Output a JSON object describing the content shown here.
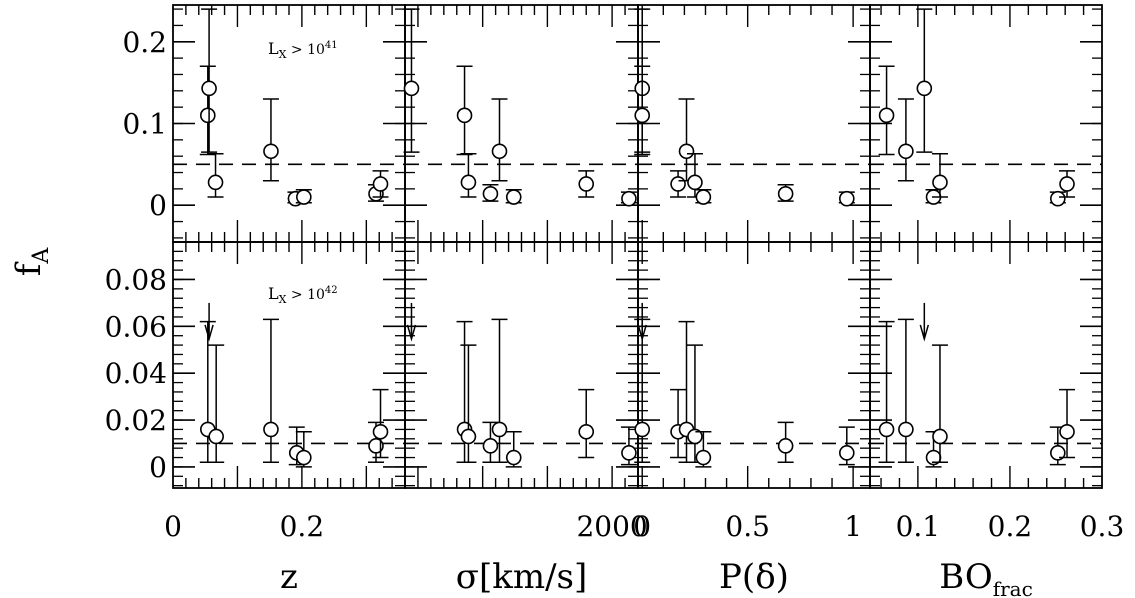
{
  "figure": {
    "ylabel_main": "f",
    "ylabel_sub": "A"
  },
  "annotations": {
    "top_prefix": "L",
    "top_sub": "X",
    "top_rest": " > 10",
    "top_exp": "41",
    "bottom_prefix": "L",
    "bottom_sub": "X",
    "bottom_rest": " > 10",
    "bottom_exp": "42"
  },
  "colors": {
    "ink": "#000000",
    "background": "#ffffff"
  },
  "chart_data": [
    {
      "type": "scatter",
      "panel": "top-z",
      "xlabel": "z",
      "xlim": [
        0,
        0.36
      ],
      "ylim": [
        -0.045,
        0.245
      ],
      "xticks": [
        0,
        0.2
      ],
      "xticklabels": [
        "0",
        "0.2"
      ],
      "yticks": [
        0,
        0.1,
        0.2
      ],
      "yticklabels": [
        "0",
        "0.1",
        "0.2"
      ],
      "reference_y": 0.05,
      "points": [
        {
          "x": 0.054,
          "y": 0.11,
          "lo": 0.062,
          "hi": 0.17
        },
        {
          "x": 0.056,
          "y": 0.143,
          "lo": 0.065,
          "hi": 0.24
        },
        {
          "x": 0.066,
          "y": 0.028,
          "lo": 0.01,
          "hi": 0.063
        },
        {
          "x": 0.152,
          "y": 0.066,
          "lo": 0.03,
          "hi": 0.13
        },
        {
          "x": 0.19,
          "y": 0.008,
          "lo": 0.003,
          "hi": 0.016
        },
        {
          "x": 0.203,
          "y": 0.01,
          "lo": 0.003,
          "hi": 0.019
        },
        {
          "x": 0.315,
          "y": 0.014,
          "lo": 0.005,
          "hi": 0.025
        },
        {
          "x": 0.322,
          "y": 0.026,
          "lo": 0.01,
          "hi": 0.042
        }
      ],
      "upper_limits": []
    },
    {
      "type": "scatter",
      "panel": "top-sigma",
      "xlabel": "σ[km/s]",
      "xlim": [
        400,
        2200
      ],
      "ylim": [
        -0.045,
        0.245
      ],
      "xticks": [
        2000
      ],
      "xticklabels": [
        "2000"
      ],
      "yticks": [
        0,
        0.1,
        0.2
      ],
      "yticklabels": [],
      "reference_y": 0.05,
      "points": [
        {
          "x": 450,
          "y": 0.143,
          "lo": 0.065,
          "hi": 0.24
        },
        {
          "x": 860,
          "y": 0.11,
          "lo": 0.062,
          "hi": 0.17
        },
        {
          "x": 890,
          "y": 0.028,
          "lo": 0.01,
          "hi": 0.063
        },
        {
          "x": 1060,
          "y": 0.014,
          "lo": 0.005,
          "hi": 0.025
        },
        {
          "x": 1130,
          "y": 0.066,
          "lo": 0.03,
          "hi": 0.13
        },
        {
          "x": 1240,
          "y": 0.01,
          "lo": 0.003,
          "hi": 0.019
        },
        {
          "x": 1800,
          "y": 0.026,
          "lo": 0.01,
          "hi": 0.042
        },
        {
          "x": 2130,
          "y": 0.008,
          "lo": 0.003,
          "hi": 0.016
        }
      ],
      "upper_limits": []
    },
    {
      "type": "scatter",
      "panel": "top-P",
      "xlabel": "P(δ)",
      "xlim": [
        -0.02,
        1.08
      ],
      "ylim": [
        -0.045,
        0.245
      ],
      "xticks": [
        0,
        0.5,
        1
      ],
      "xticklabels": [
        "0",
        "0.5",
        "1"
      ],
      "yticks": [
        0,
        0.1,
        0.2
      ],
      "yticklabels": [],
      "reference_y": 0.05,
      "points": [
        {
          "x": 0.0,
          "y": 0.143,
          "lo": 0.065,
          "hi": 0.24
        },
        {
          "x": 0.0,
          "y": 0.11,
          "lo": 0.062,
          "hi": 0.17
        },
        {
          "x": 0.17,
          "y": 0.026,
          "lo": 0.01,
          "hi": 0.042
        },
        {
          "x": 0.21,
          "y": 0.066,
          "lo": 0.03,
          "hi": 0.13
        },
        {
          "x": 0.25,
          "y": 0.028,
          "lo": 0.01,
          "hi": 0.063
        },
        {
          "x": 0.29,
          "y": 0.01,
          "lo": 0.003,
          "hi": 0.019
        },
        {
          "x": 0.68,
          "y": 0.014,
          "lo": 0.005,
          "hi": 0.025
        },
        {
          "x": 0.97,
          "y": 0.008,
          "lo": 0.003,
          "hi": 0.016
        }
      ],
      "upper_limits": []
    },
    {
      "type": "scatter",
      "panel": "top-BO",
      "xlabel": "BO",
      "xlabel_sub": "frac",
      "xlim": [
        0.048,
        0.3
      ],
      "ylim": [
        -0.045,
        0.245
      ],
      "xticks": [
        0.1,
        0.2,
        0.3
      ],
      "xticklabels": [
        "0.1",
        "0.2",
        "0.3"
      ],
      "yticks": [
        0,
        0.1,
        0.2
      ],
      "yticklabels": [],
      "reference_y": 0.05,
      "points": [
        {
          "x": 0.066,
          "y": 0.11,
          "lo": 0.062,
          "hi": 0.17
        },
        {
          "x": 0.087,
          "y": 0.066,
          "lo": 0.03,
          "hi": 0.13
        },
        {
          "x": 0.107,
          "y": 0.143,
          "lo": 0.065,
          "hi": 0.24
        },
        {
          "x": 0.117,
          "y": 0.01,
          "lo": 0.003,
          "hi": 0.019
        },
        {
          "x": 0.124,
          "y": 0.028,
          "lo": 0.01,
          "hi": 0.063
        },
        {
          "x": 0.252,
          "y": 0.008,
          "lo": 0.003,
          "hi": 0.016
        },
        {
          "x": 0.262,
          "y": 0.026,
          "lo": 0.01,
          "hi": 0.042
        }
      ],
      "upper_limits": []
    },
    {
      "type": "scatter",
      "panel": "bottom-z",
      "xlabel": "z",
      "xlim": [
        0,
        0.36
      ],
      "ylim": [
        -0.009,
        0.096
      ],
      "xticks": [
        0,
        0.2
      ],
      "xticklabels": [
        "0",
        "0.2"
      ],
      "yticks": [
        0,
        0.02,
        0.04,
        0.06,
        0.08
      ],
      "yticklabels": [
        "0",
        "0.02",
        "0.04",
        "0.06",
        "0.08"
      ],
      "reference_y": 0.01,
      "points": [
        {
          "x": 0.054,
          "y": 0.016,
          "lo": 0.002,
          "hi": 0.062
        },
        {
          "x": 0.067,
          "y": 0.013,
          "lo": 0.002,
          "hi": 0.052
        },
        {
          "x": 0.152,
          "y": 0.016,
          "lo": 0.002,
          "hi": 0.063
        },
        {
          "x": 0.192,
          "y": 0.006,
          "lo": 0.001,
          "hi": 0.017
        },
        {
          "x": 0.203,
          "y": 0.004,
          "lo": 0.0,
          "hi": 0.015
        },
        {
          "x": 0.315,
          "y": 0.009,
          "lo": 0.002,
          "hi": 0.019
        },
        {
          "x": 0.322,
          "y": 0.015,
          "lo": 0.004,
          "hi": 0.033
        }
      ],
      "upper_limits": [
        {
          "x": 0.056,
          "y": 0.07
        }
      ]
    },
    {
      "type": "scatter",
      "panel": "bottom-sigma",
      "xlabel": "σ[km/s]",
      "xlim": [
        400,
        2200
      ],
      "ylim": [
        -0.009,
        0.096
      ],
      "xticks": [
        2000
      ],
      "xticklabels": [
        "2000"
      ],
      "yticks": [
        0,
        0.02,
        0.04,
        0.06,
        0.08
      ],
      "yticklabels": [],
      "reference_y": 0.01,
      "points": [
        {
          "x": 860,
          "y": 0.016,
          "lo": 0.002,
          "hi": 0.062
        },
        {
          "x": 890,
          "y": 0.013,
          "lo": 0.002,
          "hi": 0.052
        },
        {
          "x": 1060,
          "y": 0.009,
          "lo": 0.002,
          "hi": 0.019
        },
        {
          "x": 1130,
          "y": 0.016,
          "lo": 0.002,
          "hi": 0.063
        },
        {
          "x": 1240,
          "y": 0.004,
          "lo": 0.0,
          "hi": 0.015
        },
        {
          "x": 1800,
          "y": 0.015,
          "lo": 0.004,
          "hi": 0.033
        },
        {
          "x": 2130,
          "y": 0.006,
          "lo": 0.001,
          "hi": 0.017
        }
      ],
      "upper_limits": [
        {
          "x": 450,
          "y": 0.07
        }
      ]
    },
    {
      "type": "scatter",
      "panel": "bottom-P",
      "xlabel": "P(δ)",
      "xlim": [
        -0.02,
        1.08
      ],
      "ylim": [
        -0.009,
        0.096
      ],
      "xticks": [
        0,
        0.5,
        1
      ],
      "xticklabels": [
        "0",
        "0.5",
        "1"
      ],
      "yticks": [
        0,
        0.02,
        0.04,
        0.06,
        0.08
      ],
      "yticklabels": [],
      "reference_y": 0.01,
      "points": [
        {
          "x": 0.0,
          "y": 0.016,
          "lo": 0.002,
          "hi": 0.063
        },
        {
          "x": 0.17,
          "y": 0.015,
          "lo": 0.004,
          "hi": 0.033
        },
        {
          "x": 0.21,
          "y": 0.016,
          "lo": 0.002,
          "hi": 0.062
        },
        {
          "x": 0.25,
          "y": 0.013,
          "lo": 0.002,
          "hi": 0.052
        },
        {
          "x": 0.29,
          "y": 0.004,
          "lo": 0.0,
          "hi": 0.015
        },
        {
          "x": 0.68,
          "y": 0.009,
          "lo": 0.002,
          "hi": 0.019
        },
        {
          "x": 0.97,
          "y": 0.006,
          "lo": 0.001,
          "hi": 0.017
        }
      ],
      "upper_limits": [
        {
          "x": 0.0,
          "y": 0.07
        }
      ]
    },
    {
      "type": "scatter",
      "panel": "bottom-BO",
      "xlabel": "BO",
      "xlabel_sub": "frac",
      "xlim": [
        0.048,
        0.3
      ],
      "ylim": [
        -0.009,
        0.096
      ],
      "xticks": [
        0.1,
        0.2,
        0.3
      ],
      "xticklabels": [
        "0.1",
        "0.2",
        "0.3"
      ],
      "yticks": [
        0,
        0.02,
        0.04,
        0.06,
        0.08
      ],
      "yticklabels": [],
      "reference_y": 0.01,
      "points": [
        {
          "x": 0.066,
          "y": 0.016,
          "lo": 0.002,
          "hi": 0.062
        },
        {
          "x": 0.087,
          "y": 0.016,
          "lo": 0.002,
          "hi": 0.063
        },
        {
          "x": 0.117,
          "y": 0.004,
          "lo": 0.0,
          "hi": 0.015
        },
        {
          "x": 0.124,
          "y": 0.013,
          "lo": 0.002,
          "hi": 0.052
        },
        {
          "x": 0.252,
          "y": 0.006,
          "lo": 0.001,
          "hi": 0.017
        },
        {
          "x": 0.262,
          "y": 0.015,
          "lo": 0.004,
          "hi": 0.033
        }
      ],
      "upper_limits": [
        {
          "x": 0.107,
          "y": 0.07
        }
      ]
    }
  ]
}
